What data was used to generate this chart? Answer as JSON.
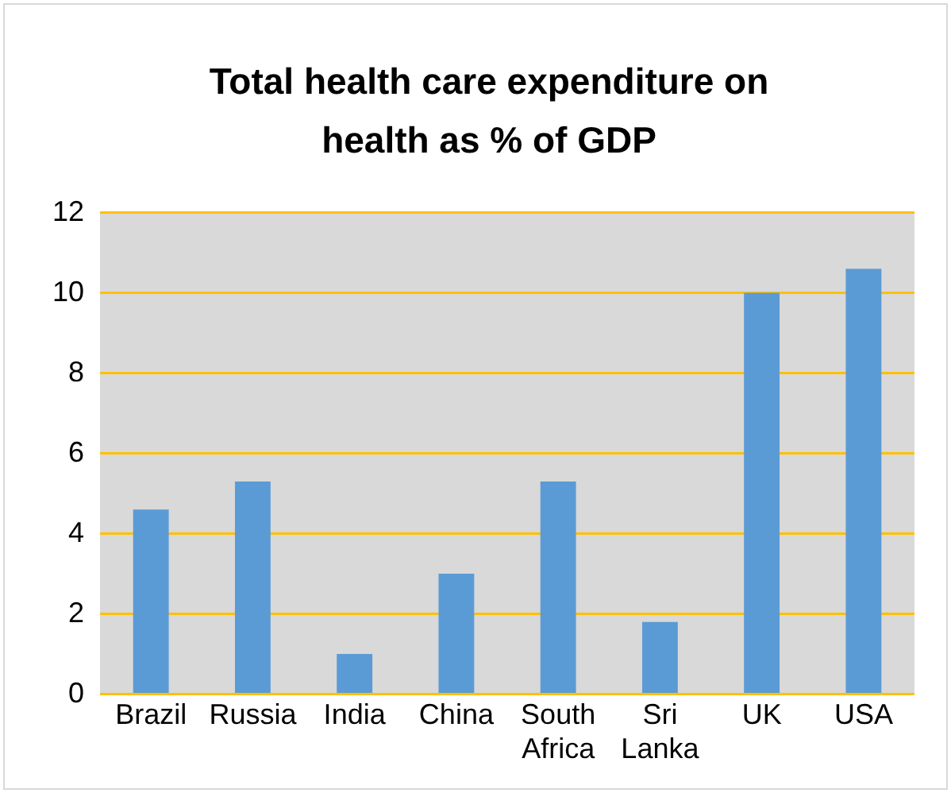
{
  "chart_data": {
    "type": "bar",
    "title": "Total health care expenditure on health as % of GDP",
    "categories": [
      "Brazil",
      "Russia",
      "India",
      "China",
      "South Africa",
      "Sri Lanka",
      "UK",
      "USA"
    ],
    "values": [
      4.6,
      5.3,
      1.0,
      3.0,
      5.3,
      1.8,
      10.0,
      10.6
    ],
    "color": "#5b9bd5",
    "ylim": [
      0,
      12
    ],
    "yticks": [
      0,
      2,
      4,
      6,
      8,
      10,
      12
    ],
    "grid": "y",
    "legend": false
  }
}
